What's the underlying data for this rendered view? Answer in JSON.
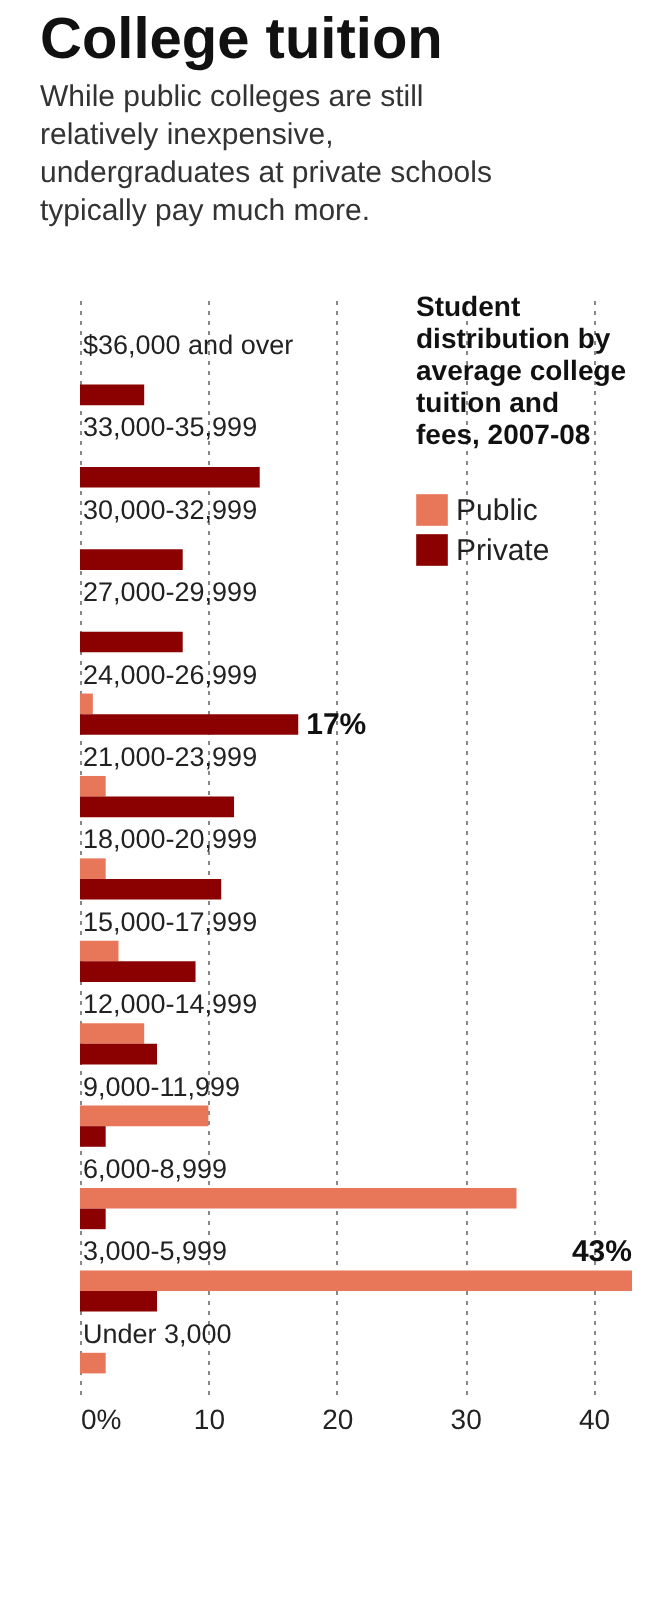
{
  "chart_data": {
    "type": "bar",
    "orientation": "horizontal",
    "title": "College tuition",
    "subtitle": "While public colleges are still relatively inexpensive, undergraduates at private schools typically pay much more.",
    "legend_title": "Student distribution by average college tuition and fees, 2007-08",
    "categories": [
      "$36,000 and over",
      "33,000-35,999",
      "30,000-32,999",
      "27,000-29,999",
      "24,000-26,999",
      "21,000-23,999",
      "18,000-20,999",
      "15,000-17,999",
      "12,000-14,999",
      "9,000-11,999",
      "6,000-8,999",
      "3,000-5,999",
      "Under 3,000"
    ],
    "series": [
      {
        "name": "Public",
        "color": "#e8775a",
        "values": [
          null,
          null,
          null,
          null,
          1,
          2,
          2,
          3,
          5,
          10,
          34,
          43,
          2
        ],
        "value_labels": [
          null,
          null,
          null,
          null,
          null,
          null,
          null,
          null,
          null,
          null,
          null,
          "43%",
          null
        ]
      },
      {
        "name": "Private",
        "color": "#8b0000",
        "values": [
          5,
          14,
          8,
          8,
          17,
          12,
          11,
          9,
          6,
          2,
          2,
          6,
          null
        ],
        "value_labels": [
          null,
          null,
          null,
          null,
          "17%",
          null,
          null,
          null,
          null,
          null,
          null,
          null,
          null
        ]
      }
    ],
    "xlim": [
      0,
      43
    ],
    "xticks": [
      {
        "value": 0,
        "label": "0%"
      },
      10,
      20,
      30,
      40
    ],
    "grid": "x",
    "legend": "top right"
  }
}
